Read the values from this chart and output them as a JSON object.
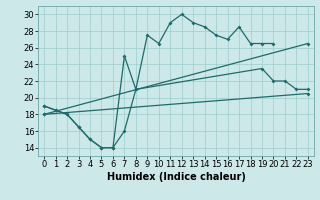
{
  "xlabel": "Humidex (Indice chaleur)",
  "xlim": [
    -0.5,
    23.5
  ],
  "ylim": [
    13,
    31
  ],
  "yticks": [
    14,
    16,
    18,
    20,
    22,
    24,
    26,
    28,
    30
  ],
  "xticks": [
    0,
    1,
    2,
    3,
    4,
    5,
    6,
    7,
    8,
    9,
    10,
    11,
    12,
    13,
    14,
    15,
    16,
    17,
    18,
    19,
    20,
    21,
    22,
    23
  ],
  "bg_color": "#cce8e8",
  "line_color": "#1e6b6b",
  "grid_color": "#9ecece",
  "line1_x": [
    0,
    1,
    2,
    3,
    4,
    5,
    6,
    7,
    8,
    9,
    10,
    11,
    12,
    13,
    14,
    15,
    16,
    17,
    18,
    19,
    20
  ],
  "line1_y": [
    19,
    18.5,
    18,
    16.5,
    15,
    14,
    14,
    25,
    21,
    27.5,
    26.5,
    29,
    30,
    29,
    28.5,
    27.5,
    27,
    28.5,
    26.5,
    26.5,
    26.5
  ],
  "line2_x": [
    0,
    23
  ],
  "line2_y": [
    18,
    20.5
  ],
  "line3_x": [
    0,
    23
  ],
  "line3_y": [
    18,
    26.5
  ],
  "line4_x": [
    0,
    1,
    2,
    3,
    4,
    5,
    6,
    7,
    8,
    19,
    20,
    21,
    22,
    23
  ],
  "line4_y": [
    19,
    18.5,
    18,
    16.5,
    15,
    14,
    14,
    16,
    21,
    23.5,
    22,
    22,
    21,
    21
  ],
  "font_size_axis": 7,
  "font_size_tick": 6
}
